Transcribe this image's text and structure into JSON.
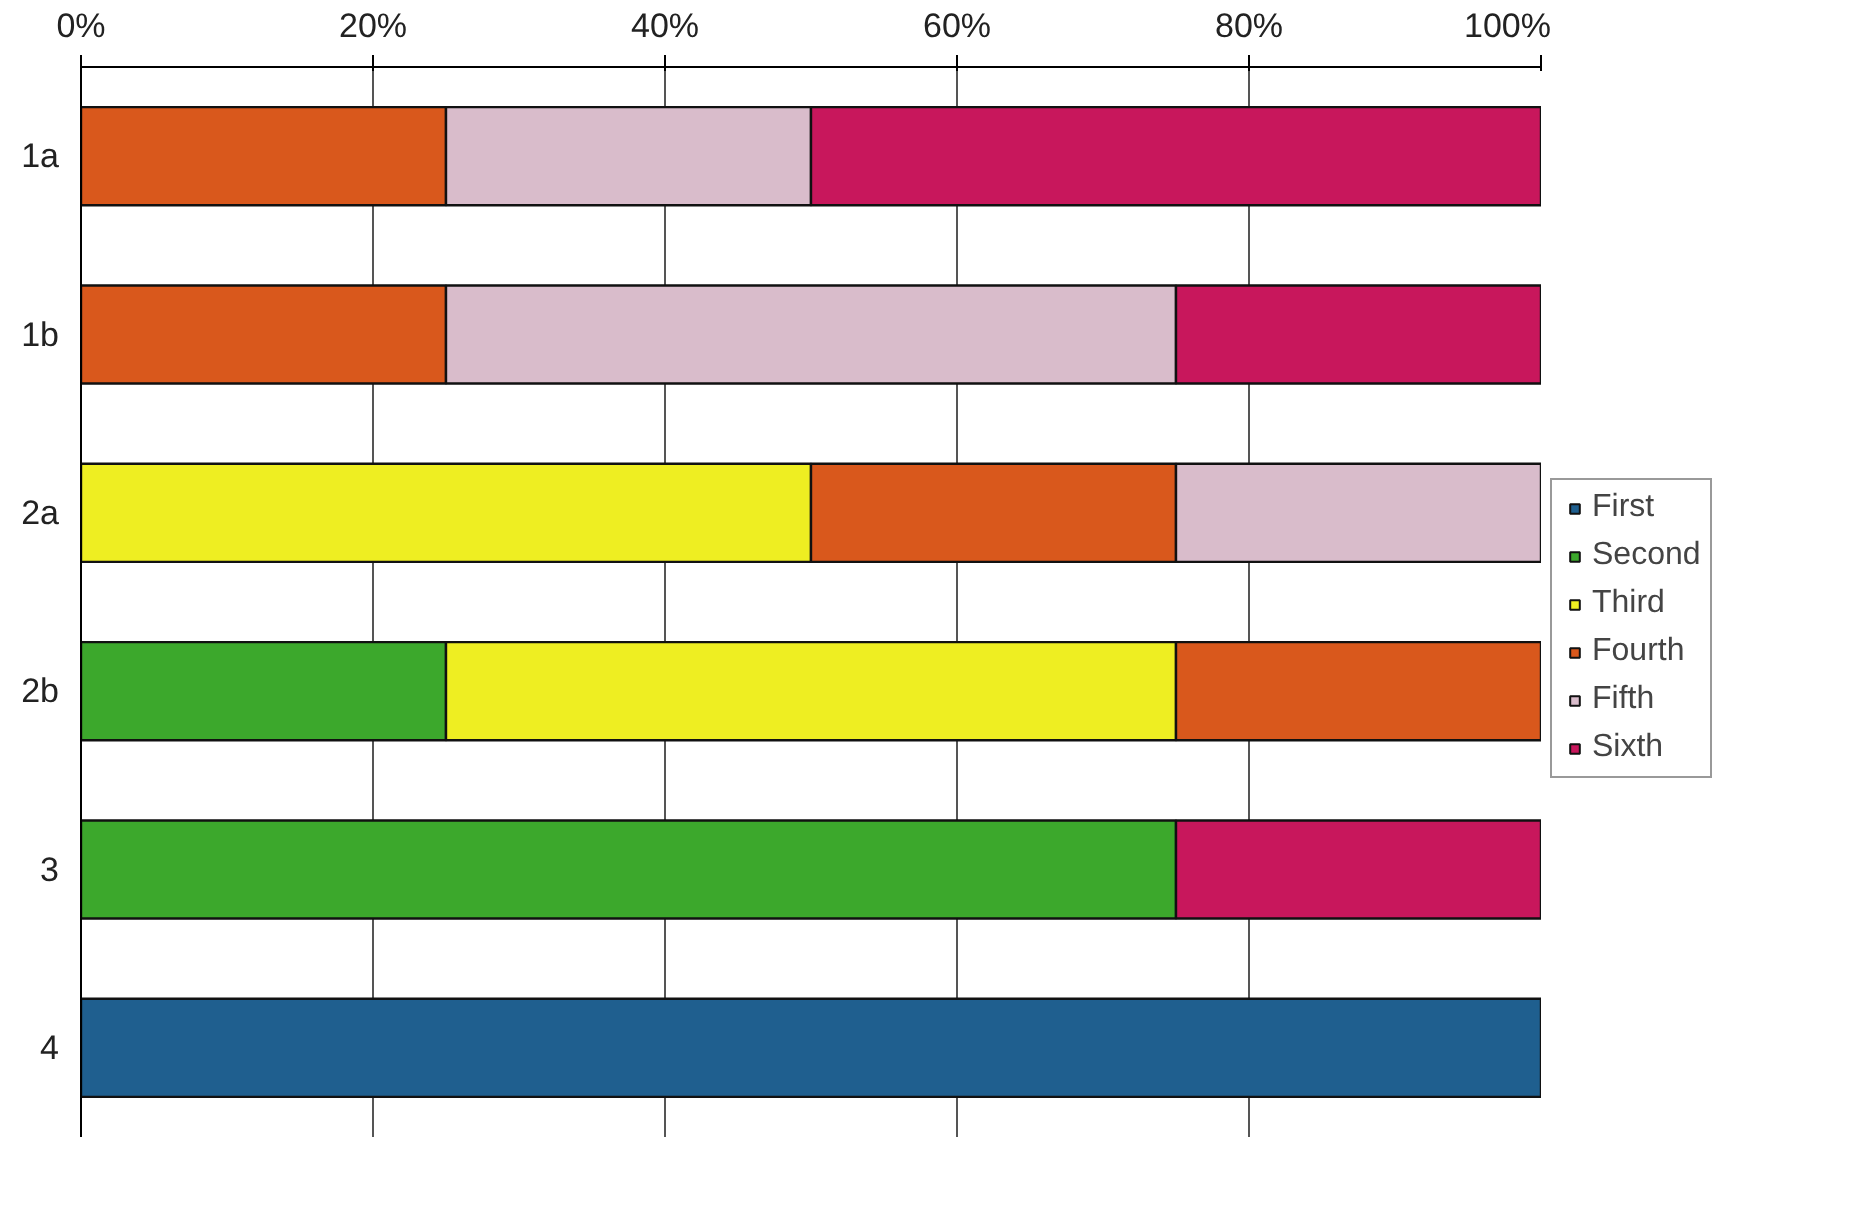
{
  "chart_data": {
    "type": "bar",
    "orientation": "horizontal",
    "stacked": true,
    "categories": [
      "1a",
      "1b",
      "2a",
      "2b",
      "3",
      "4"
    ],
    "series": [
      {
        "name": "First",
        "color": "#1f5f8f",
        "values": [
          null,
          null,
          null,
          null,
          null,
          100
        ]
      },
      {
        "name": "Second",
        "color": "#3ca82c",
        "values": [
          null,
          null,
          null,
          25,
          75,
          null
        ]
      },
      {
        "name": "Third",
        "color": "#eeee22",
        "values": [
          null,
          null,
          50,
          50,
          null,
          null
        ]
      },
      {
        "name": "Fourth",
        "color": "#d9581c",
        "values": [
          25,
          25,
          25,
          25,
          null,
          null
        ]
      },
      {
        "name": "Fifth",
        "color": "#d9bccb",
        "values": [
          25,
          50,
          25,
          null,
          null,
          null
        ]
      },
      {
        "name": "Sixth",
        "color": "#c8175c",
        "values": [
          50,
          25,
          null,
          null,
          25,
          null
        ]
      }
    ],
    "xlim": [
      0,
      100
    ],
    "xticks": [
      {
        "value": 0,
        "label": "0%"
      },
      {
        "value": 20,
        "label": "20%"
      },
      {
        "value": 40,
        "label": "40%"
      },
      {
        "value": 60,
        "label": "60%"
      },
      {
        "value": 80,
        "label": "80%"
      },
      {
        "value": 100,
        "label": "100%"
      }
    ],
    "grid": "x",
    "legend": "right"
  }
}
